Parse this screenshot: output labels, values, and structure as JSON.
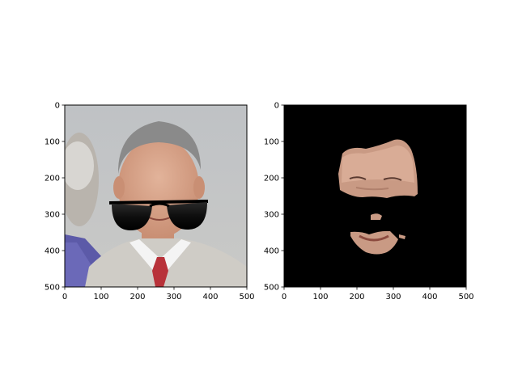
{
  "chart_data": [
    {
      "type": "image",
      "title": "",
      "content": "photo of a grey-haired man in a sweater and red tie with cartoon sunglasses overlaid on his eyes",
      "xlim": [
        0,
        500
      ],
      "ylim": [
        500,
        0
      ],
      "x_ticks": [
        0,
        100,
        200,
        300,
        400,
        500
      ],
      "y_ticks": [
        0,
        100,
        200,
        300,
        400,
        500
      ],
      "x_tick_labels": [
        "0",
        "100",
        "200",
        "300",
        "400",
        "500"
      ],
      "y_tick_labels": [
        "0",
        "100",
        "200",
        "300",
        "400",
        "500"
      ]
    },
    {
      "type": "image",
      "title": "",
      "content": "segmentation mask showing only the face skin region on a black background, eyes region removed",
      "xlim": [
        0,
        500
      ],
      "ylim": [
        500,
        0
      ],
      "x_ticks": [
        0,
        100,
        200,
        300,
        400,
        500
      ],
      "y_ticks": [
        0,
        100,
        200,
        300,
        400,
        500
      ],
      "x_tick_labels": [
        "0",
        "100",
        "200",
        "300",
        "400",
        "500"
      ],
      "y_tick_labels": [
        "0",
        "100",
        "200",
        "300",
        "400",
        "500"
      ]
    }
  ],
  "colors": {
    "background_grey": "#c4c6c8",
    "skin": "#d4a084",
    "hair": "#8a8a8a",
    "sweater": "#cfccc6",
    "tie": "#b8323a",
    "jacket": "#5c5aa8",
    "mask_bg": "#000000"
  }
}
